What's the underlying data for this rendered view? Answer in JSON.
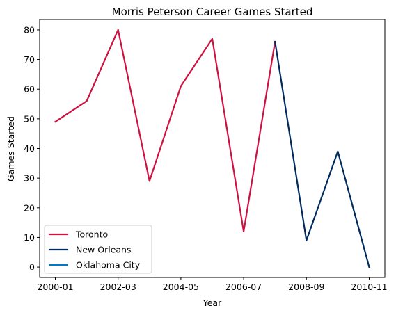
{
  "chart_data": {
    "type": "line",
    "title": "Morris Peterson Career Games Started",
    "xlabel": "Year",
    "ylabel": "Games Started",
    "x_tick_labels": [
      "2000-01",
      "2002-03",
      "2004-05",
      "2006-07",
      "2008-09",
      "2010-11"
    ],
    "y_ticks": [
      0,
      10,
      20,
      30,
      40,
      50,
      60,
      70,
      80
    ],
    "ylim": [
      -3.5,
      83.5
    ],
    "seasons": [
      "2000-01",
      "2001-02",
      "2002-03",
      "2003-04",
      "2004-05",
      "2005-06",
      "2006-07",
      "2007-08",
      "2008-09",
      "2009-10",
      "2010-11"
    ],
    "legend_position": "lower-left",
    "series": [
      {
        "name": "Toronto",
        "color": "#ce1141",
        "seasons": [
          "2000-01",
          "2001-02",
          "2002-03",
          "2003-04",
          "2004-05",
          "2005-06",
          "2006-07",
          "2007-08"
        ],
        "values": [
          49,
          56,
          80,
          29,
          61,
          77,
          12,
          76
        ]
      },
      {
        "name": "New Orleans",
        "color": "#002b5c",
        "seasons": [
          "2007-08",
          "2008-09",
          "2009-10",
          "2010-11"
        ],
        "values": [
          76,
          9,
          39,
          0
        ]
      },
      {
        "name": "Oklahoma City",
        "color": "#007ac1",
        "seasons": [
          "2010-11"
        ],
        "values": [
          0
        ]
      }
    ]
  }
}
